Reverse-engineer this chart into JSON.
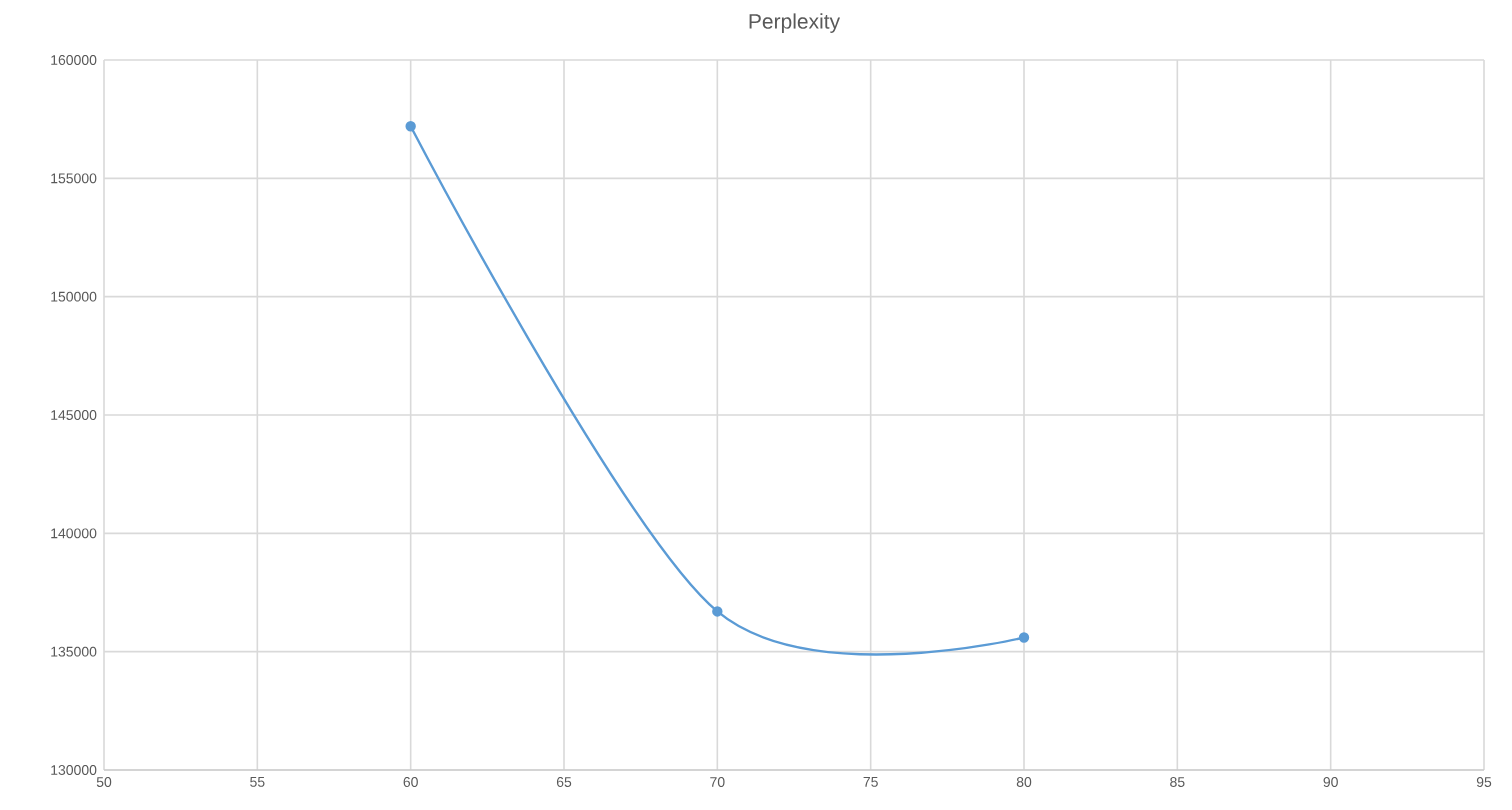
{
  "chart_data": {
    "type": "line",
    "title": "Perplexity",
    "x": [
      60,
      70,
      80
    ],
    "series": [
      {
        "color": "#5b9bd5",
        "values": [
          157200,
          136700,
          135600
        ]
      }
    ],
    "xlim": [
      50,
      95
    ],
    "xticks": [
      50,
      55,
      60,
      65,
      70,
      75,
      80,
      85,
      90,
      95
    ],
    "ylim": [
      130000,
      160000
    ],
    "yticks": [
      130000,
      135000,
      140000,
      145000,
      150000,
      155000,
      160000
    ],
    "grid": true,
    "marker": "circle",
    "line_style": "solid"
  }
}
